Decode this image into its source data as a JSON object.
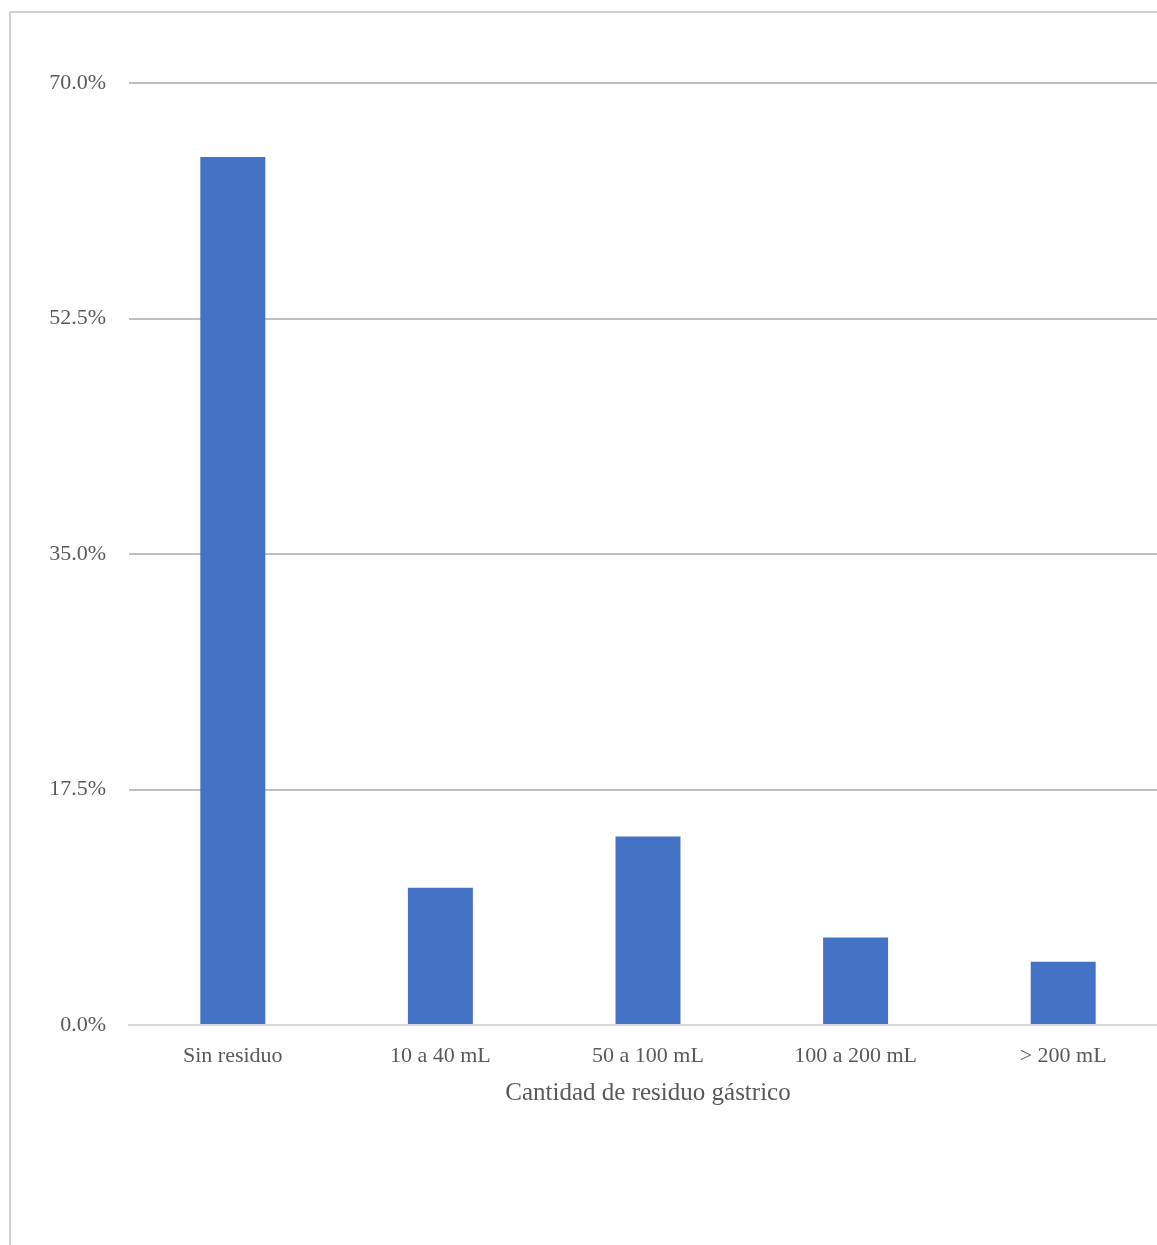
{
  "chart_data": {
    "type": "bar",
    "xlabel": "Cantidad de residuo gástrico",
    "categories": [
      "Sin residuo",
      "10 a 40 mL",
      "50 a 100 mL",
      "100 a 200 mL",
      "> 200 mL"
    ],
    "values": [
      64.5,
      10.2,
      14.0,
      6.5,
      4.7
    ],
    "color": "#4472c4",
    "ylim": [
      0,
      70
    ],
    "yticks": [
      {
        "value": 0,
        "label": "0.0%"
      },
      {
        "value": 17.5,
        "label": "17.5%"
      },
      {
        "value": 35,
        "label": "35.0%"
      },
      {
        "value": 52.5,
        "label": "52.5%"
      },
      {
        "value": 70,
        "label": "70.0%"
      }
    ],
    "grid": "y"
  }
}
